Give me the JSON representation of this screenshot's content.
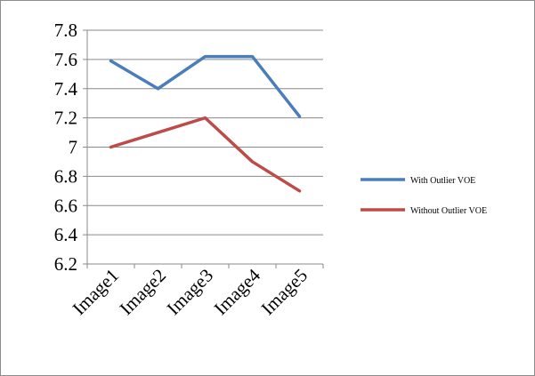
{
  "chart_data": {
    "type": "line",
    "categories": [
      "Image1",
      "Image2",
      "Image3",
      "Image4",
      "Image5"
    ],
    "series": [
      {
        "name": "With Outlier  VOE",
        "color": "#4a7ebb",
        "values": [
          7.59,
          7.4,
          7.62,
          7.62,
          7.21
        ]
      },
      {
        "name": "Without Outlier  VOE",
        "color": "#be4b48",
        "values": [
          7.0,
          7.1,
          7.2,
          6.9,
          6.7
        ]
      }
    ],
    "yticks": [
      "6.2",
      "6.4",
      "6.6",
      "6.8",
      "7",
      "7.2",
      "7.4",
      "7.6",
      "7.8"
    ],
    "ylim": [
      6.2,
      7.8
    ],
    "grid": true,
    "legend_position": "right"
  }
}
